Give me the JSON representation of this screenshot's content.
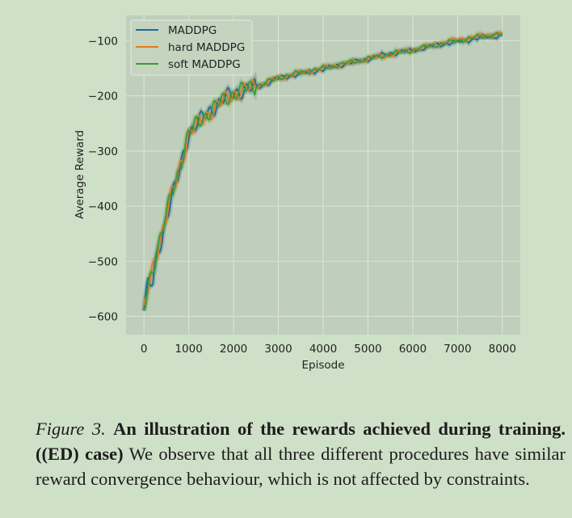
{
  "chart_data": {
    "type": "line",
    "xlabel": "Episode",
    "ylabel": "Average Reward",
    "xlim": [
      -400,
      8400
    ],
    "ylim": [
      -633,
      -54
    ],
    "xticks": [
      0,
      1000,
      2000,
      3000,
      4000,
      5000,
      6000,
      7000,
      8000
    ],
    "yticks": [
      -100,
      -200,
      -300,
      -400,
      -500,
      -600
    ],
    "grid": true,
    "legend_position": "top-left",
    "colors": {
      "background": "#bfcfbb",
      "page": "#cfe0c8",
      "grid": "#dce6d8"
    },
    "series": [
      {
        "name": "MADDPG",
        "color": "#1f6a96",
        "x": [
          0,
          100,
          200,
          300,
          400,
          500,
          600,
          700,
          800,
          900,
          1000,
          1200,
          1400,
          1600,
          1800,
          2000,
          2200,
          2400,
          2600,
          2800,
          3000,
          3500,
          4000,
          4500,
          5000,
          5500,
          6000,
          6500,
          7000,
          7500,
          8000
        ],
        "y": [
          -590,
          -535,
          -545,
          -480,
          -460,
          -420,
          -390,
          -365,
          -335,
          -300,
          -268,
          -250,
          -232,
          -218,
          -205,
          -195,
          -190,
          -186,
          -182,
          -175,
          -168,
          -160,
          -152,
          -142,
          -133,
          -123,
          -118,
          -108,
          -102,
          -95,
          -90
        ]
      },
      {
        "name": "hard MADDPG",
        "color": "#e07b22",
        "x": [
          0,
          100,
          200,
          300,
          400,
          500,
          600,
          700,
          800,
          900,
          1000,
          1200,
          1400,
          1600,
          1800,
          2000,
          2200,
          2400,
          2600,
          2800,
          3000,
          3500,
          4000,
          4500,
          5000,
          5500,
          6000,
          6500,
          7000,
          7500,
          8000
        ],
        "y": [
          -595,
          -545,
          -510,
          -478,
          -450,
          -418,
          -385,
          -360,
          -330,
          -300,
          -270,
          -252,
          -236,
          -220,
          -208,
          -197,
          -190,
          -185,
          -180,
          -174,
          -168,
          -158,
          -150,
          -141,
          -133,
          -125,
          -116,
          -107,
          -98,
          -92,
          -86
        ]
      },
      {
        "name": "soft MADDPG",
        "color": "#3a9a3a",
        "x": [
          0,
          100,
          200,
          300,
          400,
          500,
          600,
          700,
          800,
          900,
          1000,
          1200,
          1400,
          1600,
          1800,
          2000,
          2200,
          2400,
          2600,
          2800,
          3000,
          3500,
          4000,
          4500,
          5000,
          5500,
          6000,
          6500,
          7000,
          7500,
          8000
        ],
        "y": [
          -592,
          -540,
          -515,
          -475,
          -448,
          -415,
          -383,
          -358,
          -328,
          -298,
          -266,
          -249,
          -233,
          -219,
          -206,
          -196,
          -189,
          -184,
          -180,
          -174,
          -167,
          -158,
          -150,
          -141,
          -133,
          -124,
          -117,
          -108,
          -100,
          -93,
          -88
        ]
      }
    ]
  },
  "caption": {
    "figure_label": "Figure 3.",
    "title_bold": "An illustration of the rewards achieved during training. ((ED) case)",
    "body": "We observe that all three different procedures have similar reward convergence behaviour, which is not affected by constraints."
  }
}
